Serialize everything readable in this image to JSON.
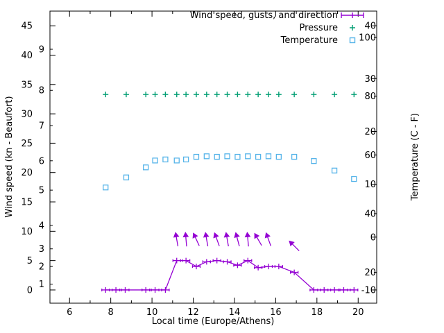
{
  "chart_data": {
    "type": "line",
    "title": "",
    "xlabel": "Local time (Europe/Athens)",
    "ylabel_left": "Wind speed (kn - Beaufort)",
    "ylabel_right": "Temperature (C - F)",
    "grid": false,
    "legend_position": "top-right-inside",
    "background": "#ffffff",
    "border_color": "#000000",
    "x_range": [
      5.05,
      20.9
    ],
    "y_left_range_kn": [
      -2.25,
      47.5
    ],
    "x_ticks": [
      6,
      8,
      10,
      12,
      14,
      16,
      18,
      20
    ],
    "x_minor_ticks": [
      7,
      9,
      11,
      13,
      15,
      17,
      19
    ],
    "y_left_ticks_kn": [
      0,
      5,
      10,
      15,
      20,
      25,
      30,
      35,
      40,
      45
    ],
    "beaufort_scale": [
      {
        "bft": "1",
        "kn": 1
      },
      {
        "bft": "2",
        "kn": 4
      },
      {
        "bft": "3",
        "kn": 7
      },
      {
        "bft": "4",
        "kn": 11
      },
      {
        "bft": "5",
        "kn": 17
      },
      {
        "bft": "6",
        "kn": 22
      },
      {
        "bft": "7",
        "kn": 28
      },
      {
        "bft": "8",
        "kn": 34
      },
      {
        "bft": "9",
        "kn": 41
      }
    ],
    "y_right_ticks_c": [
      -10,
      0,
      10,
      20,
      30,
      40
    ],
    "y_right_ticks_f": [
      20,
      40,
      60,
      80,
      100
    ],
    "legend": [
      {
        "label": "Wind speed, gusts, and direction",
        "marker": "errorbar-plus",
        "color": "#9400d3"
      },
      {
        "label": "Pressure",
        "marker": "plus",
        "color": "#009e73"
      },
      {
        "label": "Temperature",
        "marker": "open-square",
        "color": "#56b4e9"
      }
    ],
    "series": {
      "wind": {
        "name": "Wind speed, gusts, and direction",
        "color": "#9400d3",
        "x": [
          7.75,
          8.25,
          8.7,
          9.7,
          10.15,
          10.65,
          11.2,
          11.65,
          12.15,
          12.65,
          13.15,
          13.65,
          14.15,
          14.65,
          15.15,
          15.65,
          16.15,
          16.9,
          17.85,
          18.35,
          18.85,
          19.3,
          19.8
        ],
        "kn": [
          0,
          0,
          0,
          0,
          0,
          0,
          5,
          5,
          4,
          4.8,
          5,
          4.8,
          4.2,
          5,
          3.8,
          4,
          4,
          3,
          0,
          0,
          0,
          0,
          0
        ]
      },
      "wind_direction": {
        "color": "#9400d3",
        "x": [
          11.2,
          11.65,
          12.15,
          12.65,
          13.15,
          13.65,
          14.15,
          14.65,
          15.15,
          15.65,
          16.9
        ],
        "deg_from_north_up": [
          -10,
          -5,
          -25,
          -10,
          -20,
          -10,
          -15,
          -5,
          -30,
          -20,
          -45
        ],
        "center_kn": [
          8.6,
          8.6,
          8.6,
          8.6,
          8.6,
          8.6,
          8.6,
          8.6,
          8.6,
          8.6,
          7.5
        ]
      },
      "pressure": {
        "name": "Pressure",
        "color": "#009e73",
        "x": [
          7.75,
          8.75,
          9.7,
          10.15,
          10.65,
          11.2,
          11.65,
          12.15,
          12.65,
          13.15,
          13.65,
          14.15,
          14.65,
          15.15,
          15.65,
          16.15,
          16.9,
          17.85,
          18.85,
          19.8
        ],
        "plotted_level_left_axis_kn": 33.3
      },
      "temperature": {
        "name": "Temperature",
        "color": "#56b4e9",
        "x": [
          7.75,
          8.75,
          9.7,
          10.15,
          10.65,
          11.2,
          11.65,
          12.15,
          12.65,
          13.15,
          13.65,
          14.15,
          14.65,
          15.15,
          15.65,
          16.15,
          16.9,
          17.85,
          18.85,
          19.8
        ],
        "c": [
          9.4,
          11.3,
          13.2,
          14.5,
          14.7,
          14.5,
          14.7,
          15.2,
          15.3,
          15.2,
          15.3,
          15.2,
          15.3,
          15.2,
          15.3,
          15.2,
          15.2,
          14.4,
          12.6,
          11.0
        ]
      }
    }
  }
}
